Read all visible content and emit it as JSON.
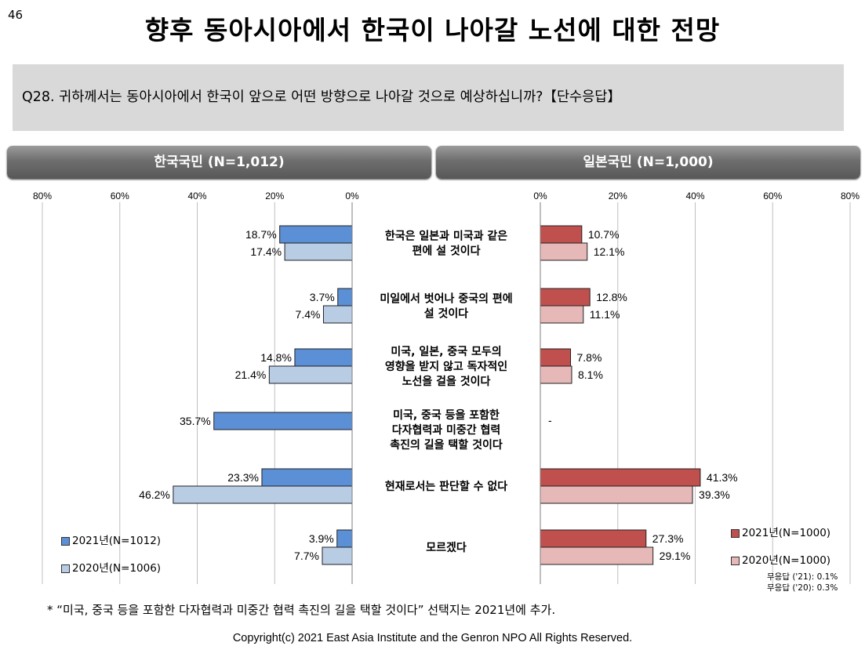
{
  "page_number": "46",
  "title": "향후 동아시아에서 한국이 나아갈 노선에 대한 전망",
  "question": "Q28. 귀하께서는 동아시아에서 한국이 앞으로 어떤 방향으로 나아갈 것으로 예상하십니까?【단수응답】",
  "panels": {
    "left_title": "한국국민 (N=1,012)",
    "right_title": "일본국민 (N=1,000)"
  },
  "legend": {
    "korea_2021": "2021년(N=1012)",
    "korea_2020": "2020년(N=1006)",
    "japan_2021": "2021년(N=1000)",
    "japan_2020": "2020년(N=1000)"
  },
  "no_response": {
    "y2021": "무응답 ('21): 0.1%",
    "y2020": "무응답 ('20): 0.3%"
  },
  "footnote": "* “미국, 중국 등을 포함한 다자협력과 미중간 협력 촉진의 길을 택할 것이다” 선택지는 2021년에 추가.",
  "copyright": "Copyright(c) 2021 East Asia Institute and the Genron NPO All Rights Reserved.",
  "colors": {
    "korea_2021": "#5b8fd6",
    "korea_2020": "#b8cce4",
    "japan_2021": "#c0504d",
    "japan_2020": "#e6b9b8"
  },
  "chart_data": {
    "type": "bar",
    "orientation": "horizontal-butterfly",
    "xlim": [
      0,
      80
    ],
    "ticks": [
      "80%",
      "60%",
      "40%",
      "20%",
      "0%",
      "20%",
      "40%",
      "60%",
      "80%"
    ],
    "categories": [
      [
        "한국은 일본과 미국과 같은",
        "편에 설 것이다"
      ],
      [
        "미일에서 벗어나 중국의 편에",
        "설 것이다"
      ],
      [
        "미국, 일본, 중국 모두의",
        "영향을 받지 않고 독자적인",
        "노선을 걸을 것이다"
      ],
      [
        "미국, 중국 등을 포함한",
        "다자협력과 미중간 협력",
        "촉진의 길을 택할 것이다"
      ],
      [
        "현재로서는 판단할 수 없다"
      ],
      [
        "모르겠다"
      ]
    ],
    "korea": {
      "y2021": [
        18.7,
        3.7,
        14.8,
        35.7,
        23.3,
        3.9
      ],
      "y2020": [
        17.4,
        7.4,
        21.4,
        null,
        46.2,
        7.7
      ]
    },
    "japan": {
      "y2021": [
        10.7,
        12.8,
        7.8,
        null,
        41.3,
        27.3
      ],
      "y2020": [
        12.1,
        11.1,
        8.1,
        null,
        39.3,
        29.1
      ]
    },
    "missing_label": "-"
  }
}
